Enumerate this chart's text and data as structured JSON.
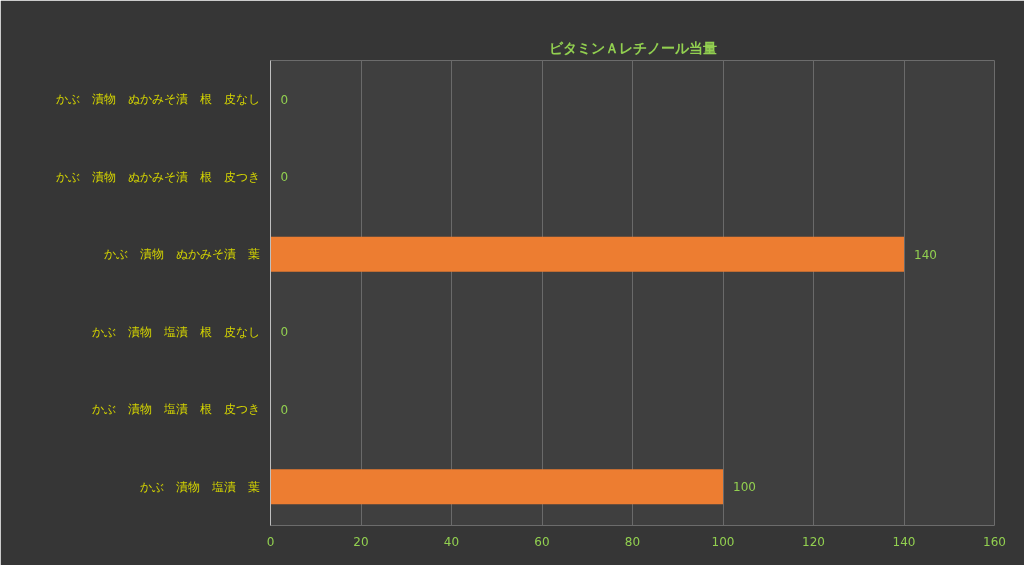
{
  "chart_data": {
    "type": "bar",
    "orientation": "horizontal",
    "title": "ビタミンＡレチノール当量",
    "categories": [
      "かぶ　漬物　ぬかみそ漬　根　皮なし",
      "かぶ　漬物　ぬかみそ漬　根　皮つき",
      "かぶ　漬物　ぬかみそ漬　葉",
      "かぶ　漬物　塩漬　根　皮なし",
      "かぶ　漬物　塩漬　根　皮つき",
      "かぶ　漬物　塩漬　葉"
    ],
    "values": [
      0,
      0,
      140,
      0,
      0,
      100
    ],
    "color": "#ed7d31",
    "xlim": [
      0,
      160
    ],
    "xticks": [
      0,
      20,
      40,
      60,
      80,
      100,
      120,
      140,
      160
    ],
    "grid": "x",
    "data_labels": true
  }
}
